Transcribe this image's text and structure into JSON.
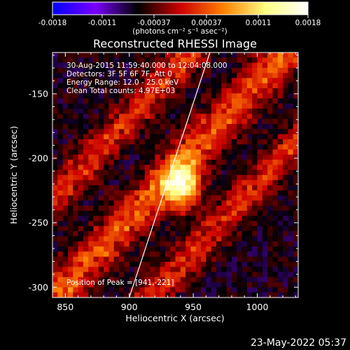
{
  "chart_data": {
    "type": "heatmap",
    "title": "Reconstructed RHESSI Image",
    "colorbar": {
      "ticks": [
        "-0.0018",
        "-0.0011",
        "-0.00037",
        "0.00037",
        "0.0011",
        "0.0018"
      ],
      "tick_values": [
        -0.0018,
        -0.0011,
        -0.00037,
        0.00037,
        0.0011,
        0.0018
      ],
      "range": [
        -0.0018,
        0.0018
      ],
      "colormap": [
        "#0000ff",
        "#7a00ff",
        "#000000",
        "#cc0000",
        "#ff7f00",
        "#ffff80",
        "#ffffff"
      ],
      "unit_label": "(photons cm⁻² s⁻¹ asec⁻²)"
    },
    "info_lines": [
      "30-Aug-2015 11:59:40.000 to 12:04:08.000",
      "Detectors: 3F 5F 6F 7F, Att 0",
      "Energy Range: 12.0 - 25.0 keV",
      "Clean     Total counts: 4.97E+03"
    ],
    "peak_label": "Position of Peak = [941,-221]",
    "peak": {
      "x": 941,
      "y": -221
    },
    "xlabel": "Heliocentric X (arcsec)",
    "ylabel": "Heliocentric Y (arcsec)",
    "xlim": [
      840,
      1032
    ],
    "ylim": [
      -308,
      -118
    ],
    "xticks": [
      850,
      900,
      950,
      1000
    ],
    "xtick_labels": [
      "850",
      "900",
      "950",
      "1000"
    ],
    "yticks": [
      -150,
      -200,
      -250,
      -300
    ],
    "ytick_labels": [
      "-150",
      "-200",
      "-250",
      "-300"
    ],
    "limb_line": {
      "x": [
        900,
        963
      ],
      "y": [
        -308,
        -118
      ]
    },
    "ridges": [
      {
        "x": [
          840,
          1032
        ],
        "slope": 1.05,
        "intercept_y": -205,
        "x0": 940,
        "width": 22,
        "level": 0.00095
      },
      {
        "x": [
          840,
          1032
        ],
        "slope": 1.05,
        "intercept_y": -127,
        "x0": 940,
        "width": 18,
        "level": 0.0008
      },
      {
        "x": [
          840,
          1032
        ],
        "slope": 1.05,
        "intercept_y": -283,
        "x0": 940,
        "width": 18,
        "level": 0.00075
      }
    ],
    "source": {
      "x": 941,
      "y": -221,
      "peak_value": 0.0018
    }
  },
  "timestamp": "23-May-2022 05:37"
}
